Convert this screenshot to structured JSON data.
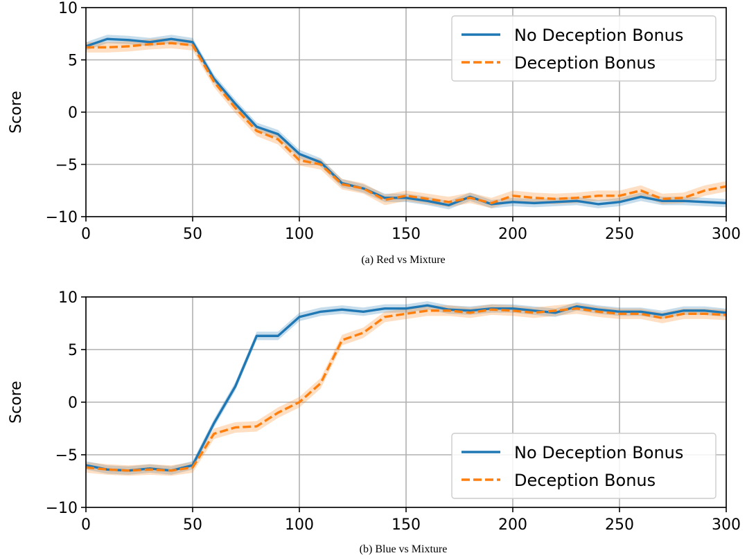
{
  "colors": {
    "no_bonus": "#1f77b4",
    "bonus": "#ff7f0e",
    "grid": "#b0b0b0",
    "axis": "#000000"
  },
  "legend": {
    "no_bonus_label": "No Deception Bonus",
    "bonus_label": "Deception Bonus"
  },
  "chart_data": [
    {
      "type": "line",
      "caption": "(a) Red vs Mixture",
      "ylabel": "Score",
      "xlabel": "",
      "xlim": [
        0,
        300
      ],
      "ylim": [
        -10,
        10
      ],
      "xticks": [
        "0",
        "50",
        "100",
        "150",
        "200",
        "250",
        "300"
      ],
      "yticks": [
        "10",
        "5",
        "0",
        "−5",
        "−10"
      ],
      "grid": true,
      "legend_position": "top-right",
      "x": [
        0,
        10,
        20,
        30,
        40,
        50,
        60,
        70,
        80,
        90,
        100,
        110,
        120,
        130,
        140,
        150,
        160,
        170,
        180,
        190,
        200,
        210,
        220,
        230,
        240,
        250,
        260,
        270,
        280,
        290,
        300
      ],
      "series": [
        {
          "name": "No Deception Bonus",
          "style": "solid",
          "values": [
            6.3,
            7.0,
            6.9,
            6.7,
            7.0,
            6.7,
            3.2,
            0.8,
            -1.4,
            -2.1,
            -4.0,
            -4.8,
            -6.8,
            -7.3,
            -8.2,
            -8.2,
            -8.5,
            -8.9,
            -8.1,
            -8.8,
            -8.6,
            -8.7,
            -8.6,
            -8.5,
            -8.8,
            -8.6,
            -8.1,
            -8.5,
            -8.5,
            -8.6,
            -8.7
          ],
          "band": 0.4
        },
        {
          "name": "Deception Bonus",
          "style": "dashed",
          "values": [
            6.2,
            6.2,
            6.3,
            6.5,
            6.6,
            6.4,
            2.9,
            0.4,
            -1.8,
            -2.6,
            -4.6,
            -5.0,
            -6.9,
            -7.3,
            -8.4,
            -8.0,
            -8.3,
            -8.6,
            -8.2,
            -8.7,
            -8.0,
            -8.2,
            -8.3,
            -8.2,
            -8.0,
            -8.0,
            -7.5,
            -8.3,
            -8.2,
            -7.5,
            -7.1
          ],
          "band": 0.5
        }
      ]
    },
    {
      "type": "line",
      "caption": "(b) Blue vs Mixture",
      "ylabel": "Score",
      "xlabel": "",
      "xlim": [
        0,
        300
      ],
      "ylim": [
        -10,
        10
      ],
      "xticks": [
        "0",
        "50",
        "100",
        "150",
        "200",
        "250",
        "300"
      ],
      "yticks": [
        "10",
        "5",
        "0",
        "−5",
        "−10"
      ],
      "grid": true,
      "legend_position": "bottom-right",
      "x": [
        0,
        10,
        20,
        30,
        40,
        50,
        60,
        70,
        80,
        90,
        100,
        110,
        120,
        130,
        140,
        150,
        160,
        170,
        180,
        190,
        200,
        210,
        220,
        230,
        240,
        250,
        260,
        270,
        280,
        290,
        300
      ],
      "series": [
        {
          "name": "No Deception Bonus",
          "style": "solid",
          "values": [
            -6.0,
            -6.4,
            -6.5,
            -6.3,
            -6.5,
            -6.0,
            -2.0,
            1.5,
            6.3,
            6.3,
            8.1,
            8.6,
            8.8,
            8.6,
            8.9,
            8.9,
            9.2,
            8.8,
            8.7,
            8.9,
            8.9,
            8.7,
            8.5,
            9.1,
            8.8,
            8.6,
            8.6,
            8.3,
            8.7,
            8.7,
            8.5
          ],
          "band": 0.4
        },
        {
          "name": "Deception Bonus",
          "style": "dashed",
          "values": [
            -6.2,
            -6.4,
            -6.5,
            -6.4,
            -6.5,
            -6.2,
            -3.0,
            -2.4,
            -2.3,
            -1.0,
            0.0,
            1.8,
            5.9,
            6.6,
            8.1,
            8.4,
            8.7,
            8.7,
            8.5,
            8.8,
            8.7,
            8.5,
            8.7,
            8.9,
            8.6,
            8.4,
            8.4,
            8.0,
            8.4,
            8.4,
            8.3
          ],
          "band": 0.5
        }
      ]
    }
  ]
}
